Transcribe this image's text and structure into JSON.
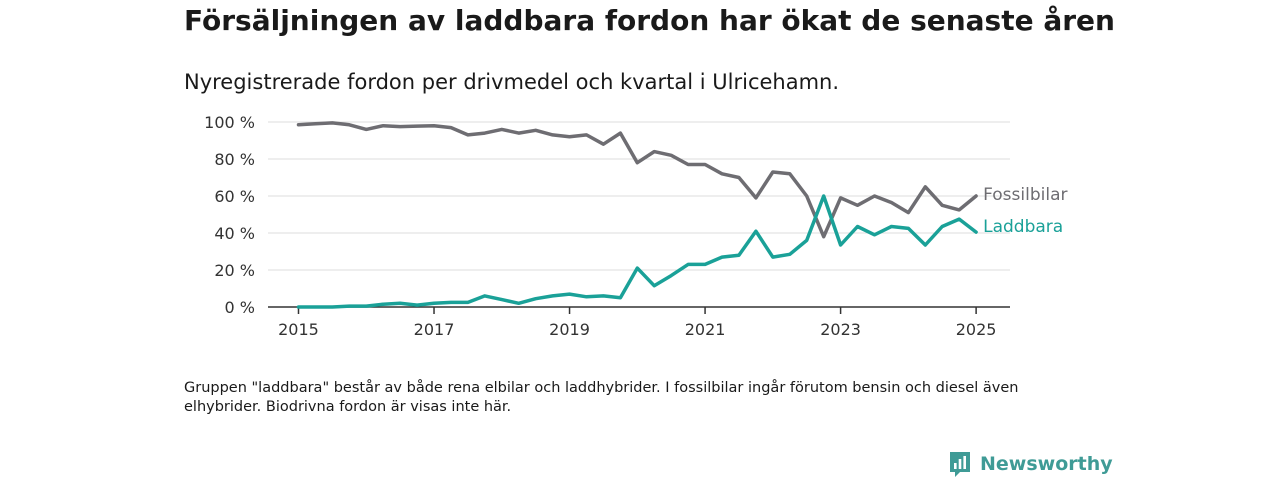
{
  "title": "Försäljningen av laddbara fordon har ökat de senaste åren",
  "subtitle": "Nyregistrerade fordon per drivmedel och kvartal i Ulricehamn.",
  "note": "Gruppen \"laddbara\" består av både rena elbilar och laddhybrider. I fossilbilar ingår förutom bensin och diesel även elhybrider. Biodrivna fordon är visas inte här.",
  "brand": {
    "name": "Newsworthy"
  },
  "colors": {
    "fossil": "#6e6d72",
    "laddbara": "#1aa198",
    "grid": "#dddddd",
    "axis": "#333333",
    "brand": "#3f9b96"
  },
  "chart_data": {
    "type": "line",
    "title": "",
    "xlabel": "",
    "ylabel": "",
    "x_ticks": [
      "2015",
      "2017",
      "2019",
      "2021",
      "2023",
      "2025"
    ],
    "y_ticks": [
      "0 %",
      "20 %",
      "40 %",
      "60 %",
      "80 %",
      "100 %"
    ],
    "ylim": [
      0,
      100
    ],
    "xlim": [
      2014.55,
      2025.5
    ],
    "grid": true,
    "legend": "inline labels at line ends",
    "x": [
      2015.0,
      2015.25,
      2015.5,
      2015.75,
      2016.0,
      2016.25,
      2016.5,
      2016.75,
      2017.0,
      2017.25,
      2017.5,
      2017.75,
      2018.0,
      2018.25,
      2018.5,
      2018.75,
      2019.0,
      2019.25,
      2019.5,
      2019.75,
      2020.0,
      2020.25,
      2020.5,
      2020.75,
      2021.0,
      2021.25,
      2021.5,
      2021.75,
      2022.0,
      2022.25,
      2022.5,
      2022.75,
      2023.0,
      2023.25,
      2023.5,
      2023.75,
      2024.0,
      2024.25,
      2024.5,
      2024.75,
      2025.0
    ],
    "series": [
      {
        "name": "Fossilbilar",
        "values": [
          98.5,
          99,
          99.5,
          98.5,
          96,
          98,
          97.5,
          97.8,
          98,
          97,
          93,
          94,
          96,
          94,
          95.5,
          93,
          92,
          93,
          88,
          94,
          78,
          84,
          82,
          77,
          77,
          72,
          70,
          59,
          73,
          72,
          60,
          38,
          59,
          55,
          60,
          56.5,
          51,
          65,
          55,
          52.5,
          60
        ]
      },
      {
        "name": "Laddbara",
        "values": [
          0,
          0,
          0,
          0.5,
          0.5,
          1.5,
          2,
          1,
          2,
          2.5,
          2.5,
          6,
          4,
          2,
          4.5,
          6,
          7,
          5.5,
          6,
          5,
          21,
          11.5,
          17,
          23,
          23,
          27,
          28,
          41,
          27,
          28.5,
          36,
          60,
          33.5,
          43.5,
          39,
          43.5,
          42.5,
          33.5,
          43.5,
          47.5,
          40.5
        ]
      }
    ]
  }
}
